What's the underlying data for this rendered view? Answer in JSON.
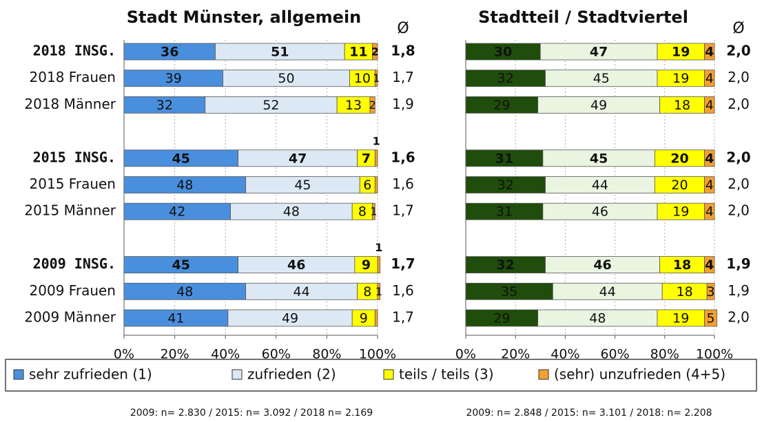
{
  "chart_data": [
    {
      "type": "stacked-bar-horizontal",
      "title": "Stadt Münster, allgemein",
      "avg_header": "Ø",
      "categories": [
        "2018 INSG.",
        "2018 Frauen",
        "2018 Männer",
        null,
        "2015 INSG.",
        "2015 Frauen",
        "2015 Männer",
        null,
        "2009 INSG.",
        "2009 Frauen",
        "2009 Männer"
      ],
      "series": [
        {
          "name": "sehr zufrieden (1)",
          "color": "#4a8fdd",
          "values": [
            36,
            39,
            32,
            null,
            45,
            48,
            42,
            null,
            45,
            48,
            41
          ]
        },
        {
          "name": "zufrieden (2)",
          "color": "#dce9f5",
          "values": [
            51,
            50,
            52,
            null,
            47,
            45,
            48,
            null,
            46,
            44,
            49
          ]
        },
        {
          "name": "teils / teils (3)",
          "color": "#ffff00",
          "values": [
            11,
            10,
            13,
            null,
            7,
            6,
            8,
            null,
            9,
            8,
            9
          ]
        },
        {
          "name": "(sehr) unzufrieden (4+5)",
          "color": "#f4a030",
          "values": [
            2,
            1,
            2,
            null,
            1,
            1,
            1,
            null,
            1,
            1,
            1
          ],
          "value_labels": [
            "2",
            "1",
            "2",
            null,
            "1",
            null,
            "1",
            null,
            "1",
            "1",
            null
          ]
        }
      ],
      "averages": [
        "1,8",
        "1,7",
        "1,9",
        null,
        "1,6",
        "1,6",
        "1,7",
        null,
        "1,7",
        "1,6",
        "1,7"
      ],
      "xlim": [
        0,
        100
      ],
      "xticks": [
        {
          "value": 0,
          "label": "0%"
        },
        {
          "value": 20,
          "label": "20%"
        },
        {
          "value": 40,
          "label": "40%"
        },
        {
          "value": 60,
          "label": "60%"
        },
        {
          "value": 80,
          "label": "80%"
        },
        {
          "value": 100,
          "label": "100%"
        }
      ],
      "grid": true,
      "note": "2009: n= 2.830 / 2015: n= 3.092 / 2018 n= 2.169"
    },
    {
      "type": "stacked-bar-horizontal",
      "title": "Stadtteil / Stadtviertel",
      "avg_header": "Ø",
      "series": [
        {
          "name": "sehr zufrieden (1)",
          "color": "#1f4d0b",
          "values": [
            30,
            32,
            29,
            null,
            31,
            32,
            31,
            null,
            32,
            35,
            29
          ]
        },
        {
          "name": "zufrieden (2)",
          "color": "#e9f5e1",
          "values": [
            47,
            45,
            49,
            null,
            45,
            44,
            46,
            null,
            46,
            44,
            48
          ]
        },
        {
          "name": "teils / teils (3)",
          "color": "#ffff00",
          "values": [
            19,
            19,
            18,
            null,
            20,
            20,
            19,
            null,
            18,
            18,
            19
          ]
        },
        {
          "name": "(sehr) unzufrieden (4+5)",
          "color": "#f4a030",
          "values": [
            4,
            4,
            4,
            null,
            4,
            4,
            4,
            null,
            4,
            3,
            5
          ]
        }
      ],
      "averages": [
        "2,0",
        "2,0",
        "2,0",
        null,
        "2,0",
        "2,0",
        "2,0",
        null,
        "1,9",
        "1,9",
        "2,0"
      ],
      "xlim": [
        0,
        100
      ],
      "xticks": [
        {
          "value": 0,
          "label": "0%"
        },
        {
          "value": 20,
          "label": "20%"
        },
        {
          "value": 40,
          "label": "40%"
        },
        {
          "value": 60,
          "label": "60%"
        },
        {
          "value": 80,
          "label": "80%"
        },
        {
          "value": 100,
          "label": "100%"
        }
      ],
      "grid": true,
      "note": "2009: n= 2.848 / 2015: n= 3.101 / 2018: n= 2.208"
    }
  ]
}
